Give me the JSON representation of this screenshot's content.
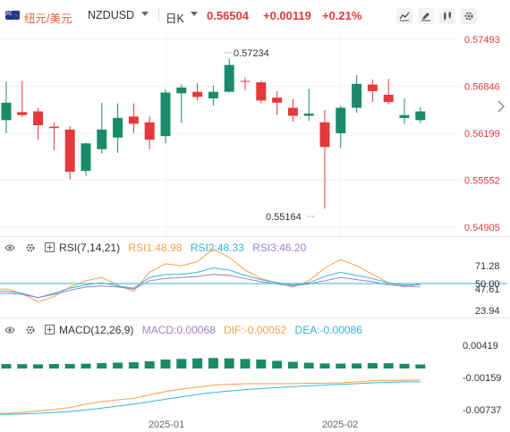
{
  "header": {
    "pair_cn": "纽元/美元",
    "symbol": "NZDUSD",
    "period": "日K",
    "price": "0.56504",
    "change": "+0.00119",
    "change_pct": "+0.21%",
    "accent_up": "#e4393c",
    "accent_down": "#1b8a6b",
    "icons": [
      "line-chart-icon",
      "pencil-icon",
      "candle-settings-icon",
      "gear-icon"
    ]
  },
  "main_chart": {
    "y_ticks": [
      "0.57493",
      "0.56846",
      "0.56199",
      "0.55552",
      "0.54905"
    ],
    "high_label": "0.57234",
    "low_label": "0.55164"
  },
  "rsi": {
    "name": "RSI(7,14,21)",
    "rsi1": "RSI1:48.98",
    "rsi2": "RSI2:48.33",
    "rsi3": "RSI3:46.20",
    "y_ticks": [
      "71.28",
      "50.00",
      "47.61",
      "23.94"
    ],
    "colors": {
      "rsi1": "#f5a04a",
      "rsi2": "#37b5d6",
      "rsi3": "#9d80c8"
    }
  },
  "macd": {
    "name": "MACD(12,26,9)",
    "macd": "MACD:0.00068",
    "dif": "DIF:-0.00052",
    "dea": "DEA:-0.00086",
    "y_ticks": [
      "0.00419",
      "-0.00159",
      "-0.00737"
    ],
    "colors": {
      "macd": "#9d80c8",
      "dif": "#f5a04a",
      "dea": "#37b5d6"
    }
  },
  "x_axis": {
    "labels": [
      "2025-01",
      "2025-02"
    ]
  },
  "chart_data": {
    "type": "candlestick",
    "candles": [
      {
        "o": 0.5638,
        "h": 0.5691,
        "l": 0.562,
        "c": 0.5662
      },
      {
        "o": 0.5649,
        "h": 0.5692,
        "l": 0.5642,
        "c": 0.5645
      },
      {
        "o": 0.565,
        "h": 0.5655,
        "l": 0.5611,
        "c": 0.5631
      },
      {
        "o": 0.5629,
        "h": 0.5635,
        "l": 0.5597,
        "c": 0.5627
      },
      {
        "o": 0.5625,
        "h": 0.563,
        "l": 0.5556,
        "c": 0.5567
      },
      {
        "o": 0.5568,
        "h": 0.5607,
        "l": 0.5561,
        "c": 0.5606
      },
      {
        "o": 0.5598,
        "h": 0.5662,
        "l": 0.5592,
        "c": 0.5625
      },
      {
        "o": 0.5614,
        "h": 0.5661,
        "l": 0.5593,
        "c": 0.5641
      },
      {
        "o": 0.5643,
        "h": 0.5661,
        "l": 0.562,
        "c": 0.5633
      },
      {
        "o": 0.5635,
        "h": 0.5643,
        "l": 0.5598,
        "c": 0.5611
      },
      {
        "o": 0.5616,
        "h": 0.568,
        "l": 0.5606,
        "c": 0.5676
      },
      {
        "o": 0.5675,
        "h": 0.5687,
        "l": 0.5634,
        "c": 0.5683
      },
      {
        "o": 0.5677,
        "h": 0.5689,
        "l": 0.5665,
        "c": 0.567
      },
      {
        "o": 0.5668,
        "h": 0.5686,
        "l": 0.5658,
        "c": 0.5677
      },
      {
        "o": 0.5677,
        "h": 0.5723,
        "l": 0.5676,
        "c": 0.5714
      },
      {
        "o": 0.5692,
        "h": 0.5697,
        "l": 0.5679,
        "c": 0.5691
      },
      {
        "o": 0.569,
        "h": 0.5692,
        "l": 0.5661,
        "c": 0.5665
      },
      {
        "o": 0.5669,
        "h": 0.5678,
        "l": 0.5645,
        "c": 0.5662
      },
      {
        "o": 0.5655,
        "h": 0.5667,
        "l": 0.5636,
        "c": 0.5644
      },
      {
        "o": 0.5644,
        "h": 0.5681,
        "l": 0.5637,
        "c": 0.5647
      },
      {
        "o": 0.5635,
        "h": 0.5652,
        "l": 0.5516,
        "c": 0.5601
      },
      {
        "o": 0.562,
        "h": 0.5658,
        "l": 0.56,
        "c": 0.5655
      },
      {
        "o": 0.5655,
        "h": 0.57,
        "l": 0.5648,
        "c": 0.5688
      },
      {
        "o": 0.5687,
        "h": 0.5694,
        "l": 0.5663,
        "c": 0.5678
      },
      {
        "o": 0.5673,
        "h": 0.5695,
        "l": 0.566,
        "c": 0.5663
      },
      {
        "o": 0.5641,
        "h": 0.5668,
        "l": 0.5633,
        "c": 0.5645
      },
      {
        "o": 0.5638,
        "h": 0.5656,
        "l": 0.5634,
        "c": 0.565
      }
    ],
    "ylim": [
      0.54905,
      0.57493
    ],
    "rsi1": [
      44,
      40,
      32,
      37,
      46,
      52,
      55,
      48,
      42,
      60,
      68,
      66,
      70,
      82,
      74,
      62,
      54,
      50,
      46,
      52,
      64,
      72,
      66,
      58,
      50,
      46,
      49
    ],
    "rsi2": [
      42,
      40,
      36,
      40,
      45,
      48,
      50,
      47,
      45,
      55,
      58,
      58,
      60,
      64,
      62,
      57,
      53,
      50,
      48,
      50,
      56,
      60,
      57,
      54,
      50,
      48,
      48
    ],
    "rsi3": [
      40,
      39,
      36,
      39,
      43,
      46,
      47,
      46,
      44,
      52,
      54,
      55,
      56,
      58,
      57,
      54,
      51,
      49,
      47,
      49,
      52,
      55,
      53,
      51,
      48,
      47,
      46
    ],
    "macd_hist": [
      0.00074,
      0.00072,
      0.0007,
      0.00075,
      0.00076,
      0.00081,
      0.0009,
      0.00098,
      0.00105,
      0.0012,
      0.0015,
      0.0016,
      0.0017,
      0.00175,
      0.0017,
      0.0016,
      0.0015,
      0.00128,
      0.00112,
      0.00096,
      0.00085,
      0.00082,
      0.00084,
      0.0009,
      0.00088,
      0.00078,
      0.00068
    ],
    "dif": [
      -0.0074,
      -0.0072,
      -0.0069,
      -0.0066,
      -0.0062,
      -0.0055,
      -0.005,
      -0.0046,
      -0.0043,
      -0.0036,
      -0.0029,
      -0.0024,
      -0.002,
      -0.0016,
      -0.0014,
      -0.0013,
      -0.0013,
      -0.0013,
      -0.0013,
      -0.0012,
      -0.0012,
      -0.0011,
      -0.0009,
      -0.0007,
      -0.0006,
      -0.0006,
      -0.0005
    ],
    "dea": [
      -0.0076,
      -0.0075,
      -0.0074,
      -0.0072,
      -0.007,
      -0.0067,
      -0.0063,
      -0.0059,
      -0.0055,
      -0.005,
      -0.0045,
      -0.004,
      -0.0035,
      -0.0031,
      -0.0028,
      -0.0025,
      -0.0023,
      -0.0021,
      -0.0019,
      -0.0017,
      -0.0016,
      -0.0014,
      -0.0013,
      -0.0011,
      -0.001,
      -0.0009,
      -0.0009
    ]
  }
}
